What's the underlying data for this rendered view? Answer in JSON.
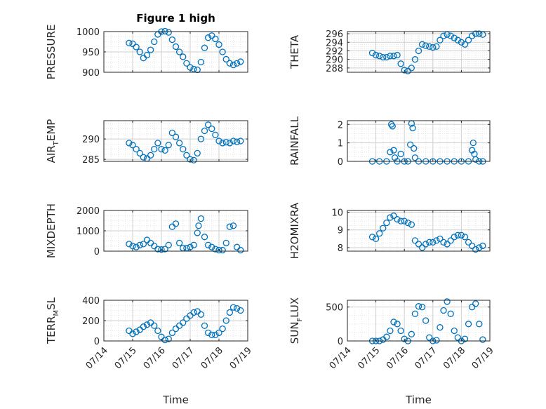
{
  "figure": {
    "title": "Figure 1 high",
    "colors": {
      "marker": "#0072BD",
      "grid": "#d9d9d9",
      "axis": "#262626"
    }
  },
  "chart_data": [
    {
      "id": "pressure",
      "type": "scatter",
      "title": "Figure 1 high",
      "ylabel": {
        "main": "PRESSURE"
      },
      "xlabel": "",
      "xlim": [
        "07/14",
        "07/19"
      ],
      "ylim": [
        900,
        1000
      ],
      "yticks": [
        900,
        950,
        1000
      ],
      "xtick_labels": [],
      "grid": true,
      "x": [
        "07/14 21:00",
        "07/15 00:00",
        "07/15 03:00",
        "07/15 06:00",
        "07/15 09:00",
        "07/15 12:00",
        "07/15 15:00",
        "07/15 18:00",
        "07/15 21:00",
        "07/16 00:00",
        "07/16 03:00",
        "07/16 06:00",
        "07/16 09:00",
        "07/16 12:00",
        "07/16 15:00",
        "07/16 18:00",
        "07/16 21:00",
        "07/17 00:00",
        "07/17 03:00",
        "07/17 06:00",
        "07/17 09:00",
        "07/17 12:00",
        "07/17 15:00",
        "07/17 18:00",
        "07/17 21:00",
        "07/18 00:00",
        "07/18 03:00",
        "07/18 06:00",
        "07/18 09:00",
        "07/18 12:00",
        "07/18 15:00",
        "07/18 18:00"
      ],
      "y": [
        972,
        970,
        962,
        950,
        935,
        942,
        955,
        975,
        993,
        1000,
        1001,
        998,
        980,
        963,
        950,
        938,
        922,
        912,
        908,
        906,
        925,
        960,
        985,
        990,
        982,
        968,
        950,
        932,
        922,
        918,
        922,
        926
      ]
    },
    {
      "id": "theta",
      "type": "scatter",
      "ylabel": {
        "main": "THETA"
      },
      "xlabel": "",
      "xlim": [
        "07/14",
        "07/19"
      ],
      "ylim": [
        287,
        296.5
      ],
      "yticks": [
        288,
        290,
        292,
        294,
        296
      ],
      "xtick_labels": [],
      "grid": true,
      "x": [
        "07/14 21:00",
        "07/15 00:00",
        "07/15 03:00",
        "07/15 06:00",
        "07/15 09:00",
        "07/15 12:00",
        "07/15 15:00",
        "07/15 18:00",
        "07/15 21:00",
        "07/16 00:00",
        "07/16 03:00",
        "07/16 06:00",
        "07/16 09:00",
        "07/16 12:00",
        "07/16 15:00",
        "07/16 18:00",
        "07/16 21:00",
        "07/17 00:00",
        "07/17 03:00",
        "07/17 06:00",
        "07/17 09:00",
        "07/17 12:00",
        "07/17 15:00",
        "07/17 18:00",
        "07/17 21:00",
        "07/18 00:00",
        "07/18 03:00",
        "07/18 06:00",
        "07/18 09:00",
        "07/18 12:00",
        "07/18 15:00",
        "07/18 18:00"
      ],
      "y": [
        291.5,
        291,
        290.8,
        290.5,
        290.5,
        290.8,
        290.8,
        291,
        289,
        287.5,
        287.3,
        288,
        290,
        292,
        293.5,
        293.2,
        293,
        292.8,
        293,
        294.5,
        295.5,
        295.8,
        295.5,
        295,
        294.5,
        294,
        293.5,
        294.5,
        295.5,
        296,
        296,
        295.8
      ]
    },
    {
      "id": "air_temp",
      "type": "scatter",
      "ylabel": {
        "main": "AIR",
        "sub": "T",
        "rest": "EMP"
      },
      "xlabel": "",
      "xlim": [
        "07/14",
        "07/19"
      ],
      "ylim": [
        284.5,
        294.5
      ],
      "yticks": [
        285,
        290
      ],
      "xtick_labels": [],
      "grid": true,
      "x": [
        "07/14 21:00",
        "07/15 00:00",
        "07/15 03:00",
        "07/15 06:00",
        "07/15 09:00",
        "07/15 12:00",
        "07/15 15:00",
        "07/15 18:00",
        "07/15 21:00",
        "07/16 00:00",
        "07/16 03:00",
        "07/16 06:00",
        "07/16 09:00",
        "07/16 12:00",
        "07/16 15:00",
        "07/16 18:00",
        "07/16 21:00",
        "07/17 00:00",
        "07/17 03:00",
        "07/17 06:00",
        "07/17 09:00",
        "07/17 12:00",
        "07/17 15:00",
        "07/17 18:00",
        "07/17 21:00",
        "07/18 00:00",
        "07/18 03:00",
        "07/18 06:00",
        "07/18 09:00",
        "07/18 12:00",
        "07/18 15:00",
        "07/18 18:00"
      ],
      "y": [
        289,
        288.5,
        287.5,
        286.5,
        285.5,
        285.2,
        286,
        287.5,
        289,
        287.5,
        287.2,
        288.5,
        291.5,
        290.5,
        289,
        287.5,
        286,
        285,
        284.8,
        286.5,
        290,
        292,
        293.5,
        292.5,
        291,
        289.5,
        289,
        289.2,
        289,
        289.5,
        289.3,
        289.5
      ]
    },
    {
      "id": "rainfall",
      "type": "scatter",
      "ylabel": {
        "main": "RAINFALL"
      },
      "xlabel": "",
      "xlim": [
        "07/14",
        "07/19"
      ],
      "ylim": [
        0,
        2.2
      ],
      "yticks": [
        0,
        1,
        2
      ],
      "xtick_labels": [],
      "grid": true,
      "x": [
        "07/14 21:00",
        "07/15 03:00",
        "07/15 09:00",
        "07/15 12:00",
        "07/15 13:00",
        "07/15 14:00",
        "07/15 15:00",
        "07/15 16:00",
        "07/15 18:00",
        "07/15 21:00",
        "07/16 00:00",
        "07/16 03:00",
        "07/16 05:00",
        "07/16 06:00",
        "07/16 07:00",
        "07/16 08:00",
        "07/16 09:00",
        "07/16 12:00",
        "07/16 18:00",
        "07/17 00:00",
        "07/17 06:00",
        "07/17 12:00",
        "07/17 18:00",
        "07/18 00:00",
        "07/18 06:00",
        "07/18 09:00",
        "07/18 10:00",
        "07/18 11:00",
        "07/18 12:00",
        "07/18 15:00",
        "07/18 18:00"
      ],
      "y": [
        0,
        0,
        0,
        0.5,
        2,
        1.9,
        0.6,
        0.2,
        0,
        0.4,
        0,
        0,
        0.9,
        2.05,
        1.8,
        0.7,
        0.2,
        0,
        0,
        0,
        0,
        0,
        0,
        0,
        0,
        0.6,
        1,
        0.4,
        0.1,
        0,
        0
      ]
    },
    {
      "id": "mixdepth",
      "type": "scatter",
      "ylabel": {
        "main": "MIXDEPTH"
      },
      "xlabel": "",
      "xlim": [
        "07/14",
        "07/19"
      ],
      "ylim": [
        0,
        2000
      ],
      "yticks": [
        0,
        1000,
        2000
      ],
      "xtick_labels": [],
      "grid": true,
      "x": [
        "07/14 21:00",
        "07/15 00:00",
        "07/15 03:00",
        "07/15 06:00",
        "07/15 09:00",
        "07/15 12:00",
        "07/15 15:00",
        "07/15 18:00",
        "07/15 21:00",
        "07/16 00:00",
        "07/16 03:00",
        "07/16 06:00",
        "07/16 09:00",
        "07/16 12:00",
        "07/16 15:00",
        "07/16 18:00",
        "07/16 21:00",
        "07/17 00:00",
        "07/17 03:00",
        "07/17 06:00",
        "07/17 07:00",
        "07/17 09:00",
        "07/17 12:00",
        "07/17 15:00",
        "07/17 18:00",
        "07/17 21:00",
        "07/18 00:00",
        "07/18 03:00",
        "07/18 06:00",
        "07/18 09:00",
        "07/18 12:00",
        "07/18 15:00",
        "07/18 18:00"
      ],
      "y": [
        350,
        250,
        200,
        300,
        350,
        550,
        400,
        250,
        100,
        80,
        100,
        300,
        1200,
        1350,
        400,
        150,
        150,
        200,
        300,
        900,
        1250,
        1600,
        700,
        300,
        200,
        100,
        50,
        50,
        400,
        1200,
        1250,
        200,
        50
      ]
    },
    {
      "id": "h2omixra",
      "type": "scatter",
      "ylabel": {
        "main": "H2OMIXRA"
      },
      "xlabel": "",
      "xlim": [
        "07/14",
        "07/19"
      ],
      "ylim": [
        7.8,
        10.1
      ],
      "yticks": [
        8,
        9,
        10
      ],
      "xtick_labels": [],
      "grid": true,
      "x": [
        "07/14 21:00",
        "07/15 00:00",
        "07/15 03:00",
        "07/15 06:00",
        "07/15 09:00",
        "07/15 12:00",
        "07/15 15:00",
        "07/15 18:00",
        "07/15 21:00",
        "07/16 00:00",
        "07/16 03:00",
        "07/16 06:00",
        "07/16 09:00",
        "07/16 12:00",
        "07/16 15:00",
        "07/16 18:00",
        "07/16 21:00",
        "07/17 00:00",
        "07/17 03:00",
        "07/17 06:00",
        "07/17 09:00",
        "07/17 12:00",
        "07/17 15:00",
        "07/17 18:00",
        "07/17 21:00",
        "07/18 00:00",
        "07/18 03:00",
        "07/18 06:00",
        "07/18 09:00",
        "07/18 12:00",
        "07/18 15:00",
        "07/18 18:00"
      ],
      "y": [
        8.6,
        8.5,
        8.8,
        9.1,
        9.4,
        9.7,
        9.8,
        9.6,
        9.5,
        9.5,
        9.4,
        9.3,
        8.4,
        8.2,
        8.0,
        8.2,
        8.3,
        8.3,
        8.4,
        8.5,
        8.3,
        8.2,
        8.4,
        8.6,
        8.7,
        8.7,
        8.6,
        8.3,
        8.1,
        7.9,
        8.0,
        8.1
      ]
    },
    {
      "id": "terr_msl",
      "type": "scatter",
      "ylabel": {
        "main": "TERR",
        "sub": "M",
        "rest": "SL"
      },
      "xlabel": "Time",
      "xlim": [
        "07/14",
        "07/19"
      ],
      "ylim": [
        0,
        400
      ],
      "yticks": [
        0,
        200,
        400
      ],
      "xtick_labels": [
        "07/14",
        "07/15",
        "07/16",
        "07/17",
        "07/18",
        "07/19"
      ],
      "grid": true,
      "x": [
        "07/14 21:00",
        "07/15 00:00",
        "07/15 03:00",
        "07/15 06:00",
        "07/15 09:00",
        "07/15 12:00",
        "07/15 15:00",
        "07/15 18:00",
        "07/15 21:00",
        "07/16 00:00",
        "07/16 03:00",
        "07/16 06:00",
        "07/16 09:00",
        "07/16 12:00",
        "07/16 15:00",
        "07/16 18:00",
        "07/16 21:00",
        "07/17 00:00",
        "07/17 03:00",
        "07/17 06:00",
        "07/17 09:00",
        "07/17 12:00",
        "07/17 15:00",
        "07/17 18:00",
        "07/17 21:00",
        "07/18 00:00",
        "07/18 03:00",
        "07/18 06:00",
        "07/18 09:00",
        "07/18 12:00",
        "07/18 15:00",
        "07/18 18:00"
      ],
      "y": [
        100,
        70,
        90,
        110,
        140,
        160,
        180,
        150,
        100,
        40,
        10,
        20,
        80,
        120,
        150,
        180,
        220,
        250,
        280,
        290,
        260,
        150,
        80,
        60,
        60,
        80,
        120,
        200,
        280,
        330,
        320,
        300
      ]
    },
    {
      "id": "sun_flux",
      "type": "scatter",
      "ylabel": {
        "main": "SUN",
        "sub": "F",
        "rest": "LUX"
      },
      "xlabel": "Time",
      "xlim": [
        "07/14",
        "07/19"
      ],
      "ylim": [
        0,
        600
      ],
      "yticks": [
        0,
        500
      ],
      "xtick_labels": [
        "07/14",
        "07/15",
        "07/16",
        "07/17",
        "07/18",
        "07/19"
      ],
      "grid": true,
      "x": [
        "07/14 21:00",
        "07/15 00:00",
        "07/15 03:00",
        "07/15 06:00",
        "07/15 09:00",
        "07/15 12:00",
        "07/15 15:00",
        "07/15 18:00",
        "07/15 21:00",
        "07/16 00:00",
        "07/16 03:00",
        "07/16 06:00",
        "07/16 09:00",
        "07/16 12:00",
        "07/16 15:00",
        "07/16 18:00",
        "07/16 21:00",
        "07/17 00:00",
        "07/17 03:00",
        "07/17 06:00",
        "07/17 09:00",
        "07/17 12:00",
        "07/17 15:00",
        "07/17 18:00",
        "07/17 21:00",
        "07/18 00:00",
        "07/18 03:00",
        "07/18 06:00",
        "07/18 09:00",
        "07/18 12:00",
        "07/18 15:00",
        "07/18 18:00"
      ],
      "y": [
        0,
        0,
        0,
        20,
        60,
        150,
        280,
        250,
        150,
        30,
        0,
        100,
        400,
        510,
        500,
        300,
        50,
        0,
        10,
        200,
        450,
        580,
        400,
        150,
        50,
        0,
        30,
        250,
        500,
        550,
        250,
        20
      ]
    }
  ]
}
